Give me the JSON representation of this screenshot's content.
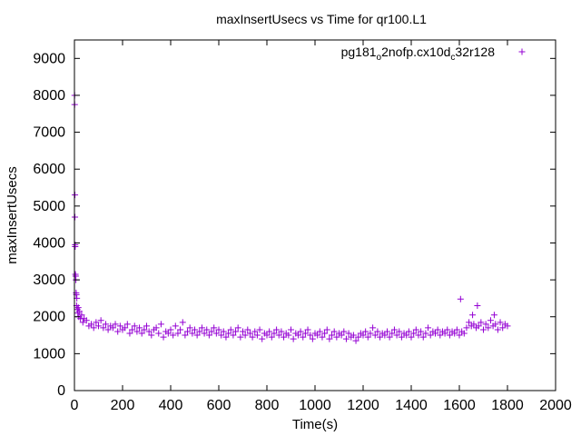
{
  "chart_data": {
    "type": "scatter",
    "title": "maxInsertUsecs vs Time for qr100.L1",
    "xlabel": "Time(s)",
    "ylabel": "maxInsertUsecs",
    "xlim": [
      0,
      2000
    ],
    "ylim": [
      0,
      9500
    ],
    "xticks": [
      "0",
      "200",
      "400",
      "600",
      "800",
      "1000",
      "1200",
      "1400",
      "1600",
      "1800",
      "2000"
    ],
    "yticks": [
      "0",
      "1000",
      "2000",
      "3000",
      "4000",
      "5000",
      "6000",
      "7000",
      "8000",
      "9000"
    ],
    "grid": false,
    "legend_position": "top-right",
    "marker": "plus",
    "color": "#9400d3",
    "series": [
      {
        "name": "pg181_o2nofp.cx10d_c32r128",
        "name_parts": [
          "pg181",
          "o",
          "2nofp.cx10d",
          "c",
          "32r128"
        ],
        "points": [
          [
            1,
            7750
          ],
          [
            1,
            8000
          ],
          [
            2,
            5300
          ],
          [
            2,
            4700
          ],
          [
            3,
            3950
          ],
          [
            3,
            3900
          ],
          [
            4,
            3150
          ],
          [
            5,
            3100
          ],
          [
            6,
            3000
          ],
          [
            7,
            2650
          ],
          [
            8,
            2600
          ],
          [
            9,
            2300
          ],
          [
            10,
            2500
          ],
          [
            12,
            2200
          ],
          [
            14,
            2100
          ],
          [
            16,
            2250
          ],
          [
            18,
            2000
          ],
          [
            20,
            2150
          ],
          [
            25,
            1950
          ],
          [
            30,
            2050
          ],
          [
            35,
            1850
          ],
          [
            40,
            1950
          ],
          [
            50,
            1900
          ],
          [
            60,
            1750
          ],
          [
            70,
            1800
          ],
          [
            80,
            1700
          ],
          [
            90,
            1850
          ],
          [
            100,
            1750
          ],
          [
            110,
            1900
          ],
          [
            120,
            1700
          ],
          [
            130,
            1800
          ],
          [
            140,
            1650
          ],
          [
            150,
            1750
          ],
          [
            160,
            1700
          ],
          [
            170,
            1800
          ],
          [
            180,
            1600
          ],
          [
            190,
            1750
          ],
          [
            200,
            1650
          ],
          [
            210,
            1700
          ],
          [
            220,
            1800
          ],
          [
            230,
            1550
          ],
          [
            240,
            1650
          ],
          [
            250,
            1750
          ],
          [
            260,
            1600
          ],
          [
            270,
            1700
          ],
          [
            280,
            1550
          ],
          [
            290,
            1650
          ],
          [
            300,
            1750
          ],
          [
            310,
            1600
          ],
          [
            320,
            1500
          ],
          [
            330,
            1650
          ],
          [
            340,
            1700
          ],
          [
            350,
            1550
          ],
          [
            360,
            1800
          ],
          [
            370,
            1450
          ],
          [
            380,
            1600
          ],
          [
            390,
            1550
          ],
          [
            400,
            1650
          ],
          [
            410,
            1500
          ],
          [
            420,
            1750
          ],
          [
            430,
            1550
          ],
          [
            440,
            1650
          ],
          [
            450,
            1850
          ],
          [
            460,
            1500
          ],
          [
            470,
            1600
          ],
          [
            480,
            1700
          ],
          [
            490,
            1550
          ],
          [
            500,
            1650
          ],
          [
            510,
            1500
          ],
          [
            520,
            1600
          ],
          [
            530,
            1700
          ],
          [
            540,
            1550
          ],
          [
            550,
            1650
          ],
          [
            560,
            1500
          ],
          [
            570,
            1600
          ],
          [
            580,
            1700
          ],
          [
            590,
            1550
          ],
          [
            600,
            1650
          ],
          [
            610,
            1500
          ],
          [
            620,
            1600
          ],
          [
            630,
            1450
          ],
          [
            640,
            1550
          ],
          [
            650,
            1650
          ],
          [
            660,
            1500
          ],
          [
            670,
            1600
          ],
          [
            680,
            1700
          ],
          [
            690,
            1450
          ],
          [
            700,
            1600
          ],
          [
            710,
            1500
          ],
          [
            720,
            1650
          ],
          [
            730,
            1550
          ],
          [
            740,
            1450
          ],
          [
            750,
            1600
          ],
          [
            760,
            1500
          ],
          [
            770,
            1650
          ],
          [
            780,
            1400
          ],
          [
            790,
            1550
          ],
          [
            800,
            1500
          ],
          [
            810,
            1600
          ],
          [
            820,
            1450
          ],
          [
            830,
            1550
          ],
          [
            840,
            1650
          ],
          [
            850,
            1500
          ],
          [
            860,
            1600
          ],
          [
            870,
            1450
          ],
          [
            880,
            1550
          ],
          [
            890,
            1500
          ],
          [
            900,
            1650
          ],
          [
            910,
            1400
          ],
          [
            920,
            1550
          ],
          [
            930,
            1500
          ],
          [
            940,
            1600
          ],
          [
            950,
            1450
          ],
          [
            960,
            1550
          ],
          [
            970,
            1650
          ],
          [
            980,
            1500
          ],
          [
            990,
            1400
          ],
          [
            1000,
            1550
          ],
          [
            1010,
            1500
          ],
          [
            1020,
            1600
          ],
          [
            1030,
            1450
          ],
          [
            1040,
            1550
          ],
          [
            1050,
            1650
          ],
          [
            1060,
            1400
          ],
          [
            1070,
            1500
          ],
          [
            1080,
            1600
          ],
          [
            1090,
            1450
          ],
          [
            1100,
            1550
          ],
          [
            1110,
            1500
          ],
          [
            1120,
            1600
          ],
          [
            1130,
            1400
          ],
          [
            1140,
            1550
          ],
          [
            1150,
            1450
          ],
          [
            1160,
            1500
          ],
          [
            1170,
            1350
          ],
          [
            1180,
            1450
          ],
          [
            1190,
            1550
          ],
          [
            1200,
            1500
          ],
          [
            1210,
            1600
          ],
          [
            1220,
            1450
          ],
          [
            1230,
            1550
          ],
          [
            1240,
            1700
          ],
          [
            1250,
            1500
          ],
          [
            1260,
            1600
          ],
          [
            1270,
            1450
          ],
          [
            1280,
            1550
          ],
          [
            1290,
            1500
          ],
          [
            1300,
            1600
          ],
          [
            1310,
            1450
          ],
          [
            1320,
            1550
          ],
          [
            1330,
            1650
          ],
          [
            1340,
            1500
          ],
          [
            1350,
            1600
          ],
          [
            1360,
            1450
          ],
          [
            1370,
            1550
          ],
          [
            1380,
            1500
          ],
          [
            1390,
            1600
          ],
          [
            1400,
            1450
          ],
          [
            1410,
            1550
          ],
          [
            1420,
            1650
          ],
          [
            1430,
            1500
          ],
          [
            1440,
            1600
          ],
          [
            1450,
            1450
          ],
          [
            1460,
            1550
          ],
          [
            1470,
            1700
          ],
          [
            1480,
            1500
          ],
          [
            1490,
            1600
          ],
          [
            1500,
            1550
          ],
          [
            1510,
            1650
          ],
          [
            1520,
            1500
          ],
          [
            1530,
            1600
          ],
          [
            1540,
            1550
          ],
          [
            1550,
            1650
          ],
          [
            1560,
            1500
          ],
          [
            1570,
            1600
          ],
          [
            1580,
            1550
          ],
          [
            1590,
            1650
          ],
          [
            1600,
            1500
          ],
          [
            1605,
            2480
          ],
          [
            1610,
            1600
          ],
          [
            1620,
            1550
          ],
          [
            1630,
            1700
          ],
          [
            1640,
            1850
          ],
          [
            1650,
            1750
          ],
          [
            1655,
            2050
          ],
          [
            1660,
            1800
          ],
          [
            1670,
            1700
          ],
          [
            1675,
            2300
          ],
          [
            1680,
            1750
          ],
          [
            1690,
            1850
          ],
          [
            1700,
            1650
          ],
          [
            1710,
            1800
          ],
          [
            1720,
            1700
          ],
          [
            1730,
            1900
          ],
          [
            1740,
            1750
          ],
          [
            1745,
            2050
          ],
          [
            1750,
            1800
          ],
          [
            1760,
            1650
          ],
          [
            1770,
            1850
          ],
          [
            1780,
            1700
          ],
          [
            1790,
            1800
          ],
          [
            1800,
            1750
          ]
        ]
      }
    ]
  }
}
